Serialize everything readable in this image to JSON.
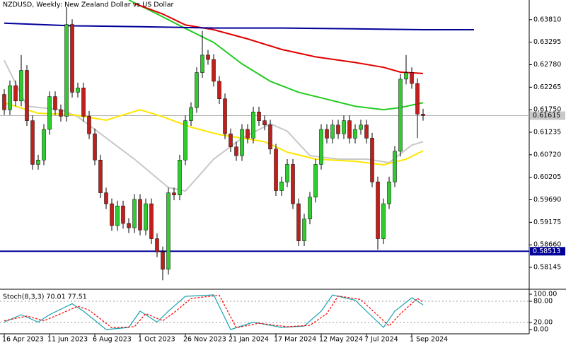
{
  "chart_data": [
    {
      "type": "candlestick",
      "title": "NZDUSD, Weekly:  New Zealand Dollar vs US Dollar",
      "categories": [
        "16 Apr 2023",
        null,
        null,
        null,
        null,
        null,
        null,
        null,
        "11 Jun 2023",
        null,
        null,
        null,
        null,
        null,
        null,
        null,
        "6 Aug 2023",
        null,
        null,
        null,
        null,
        null,
        null,
        null,
        "1 Oct 2023",
        null,
        null,
        null,
        null,
        null,
        null,
        null,
        "26 Nov 2023",
        null,
        null,
        null,
        null,
        null,
        null,
        null,
        "21 Jan 2024",
        null,
        null,
        null,
        null,
        null,
        null,
        null,
        "17 Mar 2024",
        null,
        null,
        null,
        null,
        null,
        null,
        null,
        "12 May 2024",
        null,
        null,
        null,
        null,
        null,
        null,
        null,
        "7 Jul 2024",
        null,
        null,
        null,
        null,
        null,
        null,
        null,
        "1 Sep 2024",
        null,
        null
      ],
      "open": [
        0.621,
        0.6175,
        0.623,
        0.6195,
        0.6265,
        0.615,
        0.605,
        0.606,
        0.613,
        0.6205,
        0.6175,
        0.616,
        0.637,
        0.6215,
        0.6225,
        0.616,
        0.612,
        0.606,
        0.5985,
        0.596,
        0.591,
        0.5955,
        0.5915,
        0.5905,
        0.597,
        0.59,
        0.596,
        0.588,
        0.585,
        0.581,
        0.5985,
        0.598,
        0.606,
        0.615,
        0.618,
        0.626,
        0.63,
        0.629,
        0.624,
        0.62,
        0.612,
        0.609,
        0.607,
        0.613,
        0.611,
        0.617,
        0.615,
        0.614,
        0.6085,
        0.599,
        0.601,
        0.605,
        0.596,
        0.5875,
        0.5925,
        0.5975,
        0.605,
        0.613,
        0.611,
        0.614,
        0.612,
        0.615,
        0.611,
        0.613,
        0.614,
        0.611,
        0.601,
        0.588,
        0.596,
        0.601,
        0.608,
        0.6245,
        0.626,
        0.6235,
        0.6165
      ],
      "high": [
        0.6222,
        0.6242,
        0.6242,
        0.63,
        0.6277,
        0.6162,
        0.6072,
        0.6142,
        0.6217,
        0.6217,
        0.6187,
        0.641,
        0.6382,
        0.6237,
        0.6237,
        0.6172,
        0.6132,
        0.6072,
        0.5997,
        0.5972,
        0.5967,
        0.5967,
        0.5927,
        0.5982,
        0.5982,
        0.5972,
        0.5972,
        0.5892,
        0.5862,
        0.5997,
        0.5997,
        0.6072,
        0.6162,
        0.6192,
        0.6272,
        0.6355,
        0.6312,
        0.6302,
        0.6252,
        0.6212,
        0.6132,
        0.6102,
        0.6142,
        0.6142,
        0.6182,
        0.6182,
        0.6162,
        0.6152,
        0.6097,
        0.6022,
        0.6062,
        0.6062,
        0.5972,
        0.5937,
        0.5987,
        0.6062,
        0.6142,
        0.6142,
        0.6152,
        0.6152,
        0.6162,
        0.6162,
        0.6142,
        0.6152,
        0.6152,
        0.6122,
        0.6022,
        0.5972,
        0.6022,
        0.6092,
        0.6257,
        0.63,
        0.6272,
        0.6247,
        0.6177
      ],
      "low": [
        0.6163,
        0.6163,
        0.6183,
        0.6183,
        0.6138,
        0.6038,
        0.6038,
        0.6048,
        0.6118,
        0.6163,
        0.6148,
        0.6148,
        0.6203,
        0.6203,
        0.6148,
        0.6108,
        0.6048,
        0.5973,
        0.5948,
        0.5898,
        0.5898,
        0.5903,
        0.5893,
        0.5893,
        0.5888,
        0.5888,
        0.5868,
        0.5838,
        0.5785,
        0.5798,
        0.5968,
        0.5968,
        0.6048,
        0.6138,
        0.6168,
        0.6248,
        0.6278,
        0.6228,
        0.6188,
        0.6108,
        0.6078,
        0.6058,
        0.6058,
        0.6098,
        0.6098,
        0.6138,
        0.6128,
        0.6073,
        0.5978,
        0.5978,
        0.5998,
        0.5948,
        0.5863,
        0.5863,
        0.5913,
        0.5963,
        0.6038,
        0.6098,
        0.6098,
        0.6108,
        0.6108,
        0.6098,
        0.6098,
        0.6118,
        0.6098,
        0.5998,
        0.5855,
        0.5868,
        0.5948,
        0.5998,
        0.6068,
        0.6233,
        0.6223,
        0.611,
        0.615
      ],
      "close": [
        0.6175,
        0.623,
        0.6195,
        0.6265,
        0.615,
        0.605,
        0.606,
        0.613,
        0.6205,
        0.6175,
        0.616,
        0.637,
        0.6215,
        0.6225,
        0.616,
        0.612,
        0.606,
        0.5985,
        0.596,
        0.591,
        0.5955,
        0.5915,
        0.5905,
        0.597,
        0.59,
        0.596,
        0.588,
        0.585,
        0.581,
        0.5985,
        0.598,
        0.606,
        0.615,
        0.618,
        0.626,
        0.63,
        0.629,
        0.624,
        0.62,
        0.612,
        0.609,
        0.607,
        0.613,
        0.611,
        0.617,
        0.615,
        0.614,
        0.6085,
        0.599,
        0.601,
        0.605,
        0.596,
        0.5875,
        0.5925,
        0.5975,
        0.605,
        0.613,
        0.611,
        0.614,
        0.612,
        0.615,
        0.611,
        0.613,
        0.614,
        0.611,
        0.601,
        0.588,
        0.596,
        0.601,
        0.608,
        0.6245,
        0.626,
        0.6235,
        0.6165,
        0.6162
      ],
      "up_color": "#2ecc2e",
      "down_color": "#c0201c",
      "overlays": [
        {
          "color": "#c8c8c8",
          "x": [
            0,
            4,
            10,
            13,
            23,
            29,
            32,
            37,
            42,
            47,
            50,
            54,
            59,
            64,
            68,
            72,
            74
          ],
          "values": [
            0.6288,
            0.6183,
            0.6175,
            0.6159,
            0.6062,
            0.5997,
            0.5989,
            0.6062,
            0.611,
            0.6143,
            0.6126,
            0.607,
            0.6062,
            0.6062,
            0.6054,
            0.6094,
            0.6102
          ]
        },
        {
          "color": "#ffe600",
          "x": [
            0,
            6,
            12,
            18,
            24,
            28,
            33,
            38,
            46,
            50,
            55,
            62,
            67,
            71,
            74
          ],
          "values": [
            0.6191,
            0.6167,
            0.6164,
            0.6151,
            0.6175,
            0.6159,
            0.6135,
            0.6118,
            0.6102,
            0.6078,
            0.6062,
            0.6057,
            0.6049,
            0.6062,
            0.6081
          ]
        },
        {
          "color": "#22cc22",
          "x": [
            22,
            27,
            32,
            37,
            42,
            47,
            52,
            57,
            62,
            67,
            70,
            74
          ],
          "values": [
            0.6426,
            0.6394,
            0.6361,
            0.6329,
            0.628,
            0.624,
            0.6215,
            0.6199,
            0.6183,
            0.6175,
            0.618,
            0.6191
          ]
        },
        {
          "color": "#e00000",
          "x": [
            23,
            28,
            32,
            37,
            43,
            49,
            55,
            62,
            67,
            70,
            74
          ],
          "values": [
            0.6418,
            0.6394,
            0.6369,
            0.6358,
            0.6337,
            0.6313,
            0.6296,
            0.6283,
            0.6272,
            0.6261,
            0.6258
          ]
        },
        {
          "color": "#000099",
          "x": [
            0,
            12,
            24,
            37,
            49,
            62,
            74,
            83
          ],
          "values": [
            0.6373,
            0.6367,
            0.6365,
            0.6362,
            0.6362,
            0.636,
            0.6358,
            0.6358
          ]
        }
      ],
      "hlines": [
        {
          "value": 0.61615,
          "color": "#b0b0b0",
          "label_bg": "#c8c8c8",
          "label_color": "#000000"
        },
        {
          "value": 0.58513,
          "color": "#000099",
          "label_bg": "#000099",
          "label_color": "#ffffff"
        }
      ],
      "ylim": [
        0.5766,
        0.6426
      ],
      "yticks": [
        {
          "value": 0.6381,
          "label": "0.63810"
        },
        0.63295,
        {
          "value": 0.6278,
          "label": "0.62780"
        },
        0.62265,
        {
          "value": 0.6175,
          "label": "0.61750"
        },
        0.61235,
        {
          "value": 0.6072,
          "label": "0.60720"
        },
        0.60205,
        {
          "value": 0.5969,
          "label": "0.59690"
        },
        0.59175,
        {
          "value": 0.5866,
          "label": "0.58660"
        },
        0.58145
      ]
    },
    {
      "type": "stochastic",
      "title": "Stoch(8,3,3) 70.01 77.51",
      "ylim": [
        -10,
        110
      ],
      "yticks": [
        {
          "value": 100,
          "label": "100.00"
        },
        {
          "value": 80,
          "label": "80.00"
        },
        {
          "value": 20,
          "label": "20.00"
        },
        {
          "value": 0,
          "label": "0.00"
        }
      ],
      "levels": [
        80,
        20
      ],
      "series": [
        {
          "color": "#1aa3b0",
          "dashed": false,
          "x": [
            0,
            3,
            6,
            8,
            12,
            14,
            18,
            22,
            24,
            27,
            29,
            32,
            37,
            40,
            44,
            49,
            53,
            56,
            58,
            62,
            64,
            67,
            69,
            72,
            74
          ],
          "values": [
            21,
            42,
            21,
            42,
            73,
            52,
            0,
            6,
            52,
            21,
            52,
            94,
            98,
            0,
            21,
            6,
            10,
            52,
            98,
            83,
            52,
            6,
            52,
            90,
            70
          ]
        },
        {
          "color": "#ff0000",
          "dashed": true,
          "x": [
            0,
            4,
            7,
            9,
            13,
            15,
            19,
            23,
            25,
            28,
            30,
            33,
            38,
            41,
            45,
            50,
            54,
            57,
            59,
            63,
            65,
            68,
            70,
            73,
            74
          ],
          "values": [
            25,
            38,
            25,
            38,
            66,
            55,
            5,
            8,
            45,
            25,
            48,
            88,
            97,
            5,
            18,
            8,
            12,
            45,
            95,
            85,
            55,
            10,
            45,
            88,
            78
          ]
        }
      ]
    }
  ]
}
